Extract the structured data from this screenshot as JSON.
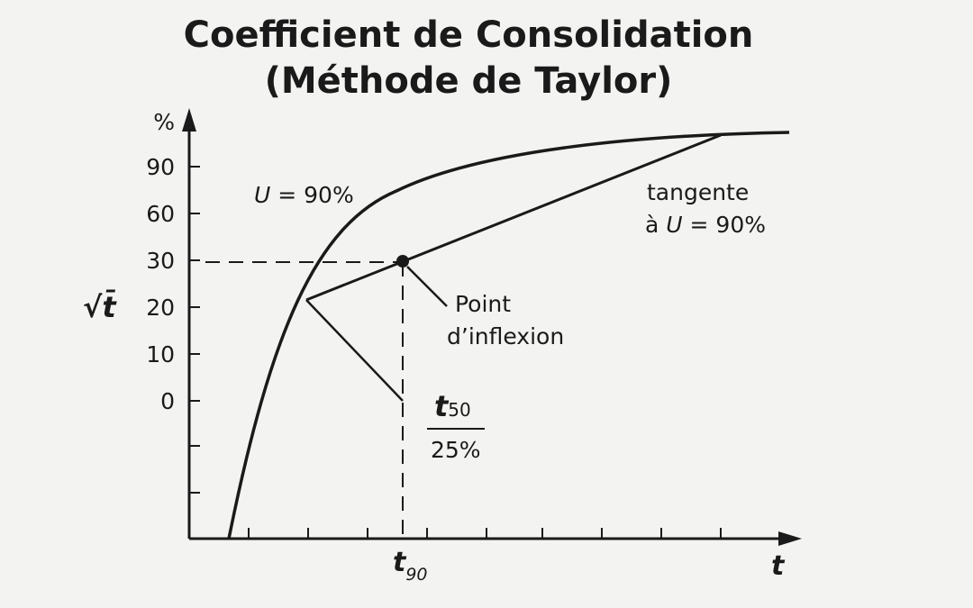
{
  "title": {
    "line1": "Coefficient de Consolidation",
    "line2": "(Méthode de Taylor)"
  },
  "axes": {
    "y_unit": "%",
    "y_label": "√t̄",
    "x_label": "t",
    "y_ticks": [
      "90",
      "60",
      "30",
      "20",
      "10",
      "0"
    ],
    "x_mark_label": "t",
    "x_mark_subscript": "90"
  },
  "annotations": {
    "u90_var": "U",
    "u90_rest": " = 90%",
    "tangent_line1": "tangente",
    "tangent_line2_prefix": "à ",
    "tangent_line2_var": "U",
    "tangent_line2_rest": " = 90%",
    "inflection_line1": "Point",
    "inflection_line2": "d’inflexion",
    "fraction_num_var": "t",
    "fraction_num_sub": "50",
    "fraction_den": "25%"
  },
  "colors": {
    "background": "#f3f3f1",
    "ink": "#1a1a1a"
  }
}
